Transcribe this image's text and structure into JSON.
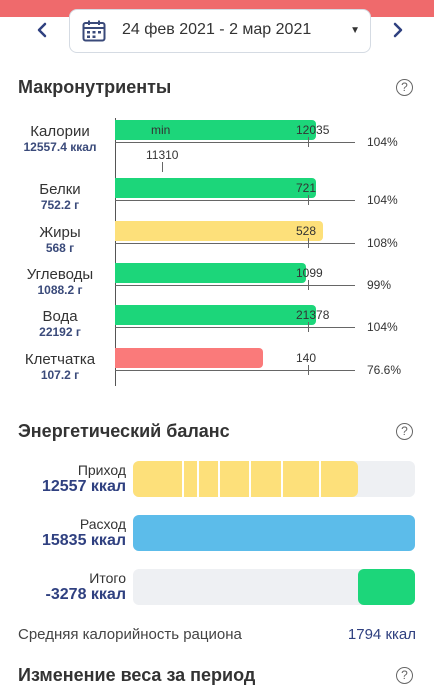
{
  "header": {
    "date_range": "24 фев 2021 - 2 мар 2021",
    "prev_icon": "chevron-left-icon",
    "next_icon": "chevron-right-icon",
    "calendar_icon": "calendar-icon",
    "accent_color": "#ef6a6c"
  },
  "macros": {
    "title": "Макронутриенты",
    "help": "?",
    "min_label": "min",
    "min_value": "11310",
    "items": [
      {
        "name": "Калории",
        "value": "12557.4 ккал",
        "target": "12035",
        "percent": "104%",
        "fill_percent": 104,
        "color": "#1cd67a"
      },
      {
        "name": "Белки",
        "value": "752.2 г",
        "target": "721",
        "percent": "104%",
        "fill_percent": 104,
        "color": "#1cd67a"
      },
      {
        "name": "Жиры",
        "value": "568 г",
        "target": "528",
        "percent": "108%",
        "fill_percent": 108,
        "color": "#fde07a"
      },
      {
        "name": "Углеводы",
        "value": "1088.2 г",
        "target": "1099",
        "percent": "99%",
        "fill_percent": 99,
        "color": "#1cd67a"
      },
      {
        "name": "Вода",
        "value": "22192 г",
        "target": "21378",
        "percent": "104%",
        "fill_percent": 104,
        "color": "#1cd67a"
      },
      {
        "name": "Клетчатка",
        "value": "107.2 г",
        "target": "140",
        "percent": "76.6%",
        "fill_percent": 76.6,
        "color": "#fa7a7a"
      }
    ]
  },
  "energy": {
    "title": "Энергетический баланс",
    "help": "?",
    "income_label": "Приход",
    "income_value": "12557 ккал",
    "expense_label": "Расход",
    "expense_value": "15835 ккал",
    "total_label": "Итого",
    "total_value": "-3278 ккал",
    "avg_label": "Средняя калорийность рациона",
    "avg_value": "1794 ккал"
  },
  "weight": {
    "title": "Изменение веса за период",
    "help": "?"
  }
}
